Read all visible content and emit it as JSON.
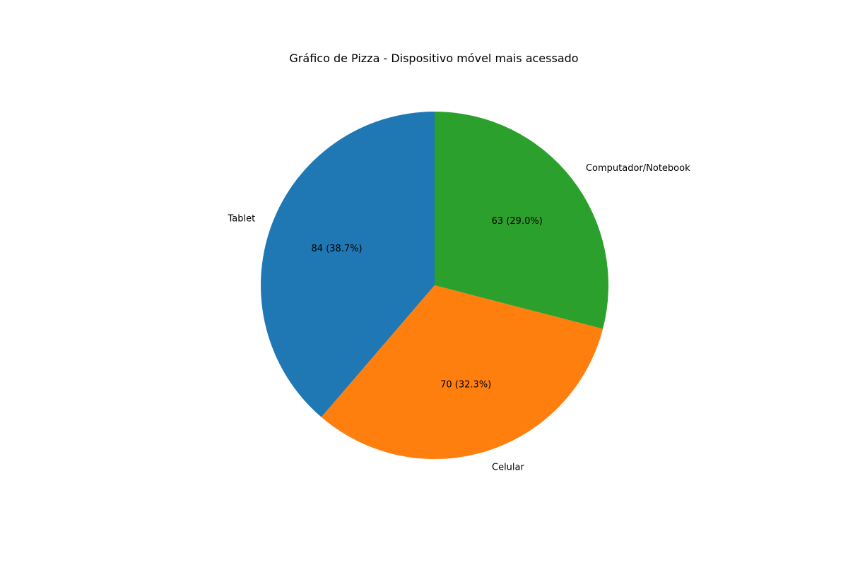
{
  "chart_data": {
    "type": "pie",
    "title": "Gráfico de Pizza - Dispositivo móvel mais acessado",
    "categories": [
      "Tablet",
      "Celular",
      "Computador/Notebook"
    ],
    "values": [
      84,
      70,
      63
    ],
    "value_labels": [
      "84 (38.7%)",
      "70 (32.3%)",
      "63 (29.0%)"
    ],
    "colors": [
      "#1f77b4",
      "#ff7f0e",
      "#2ca02c"
    ],
    "start_angle_deg": 90,
    "direction": "counterclockwise",
    "legend": "none"
  }
}
